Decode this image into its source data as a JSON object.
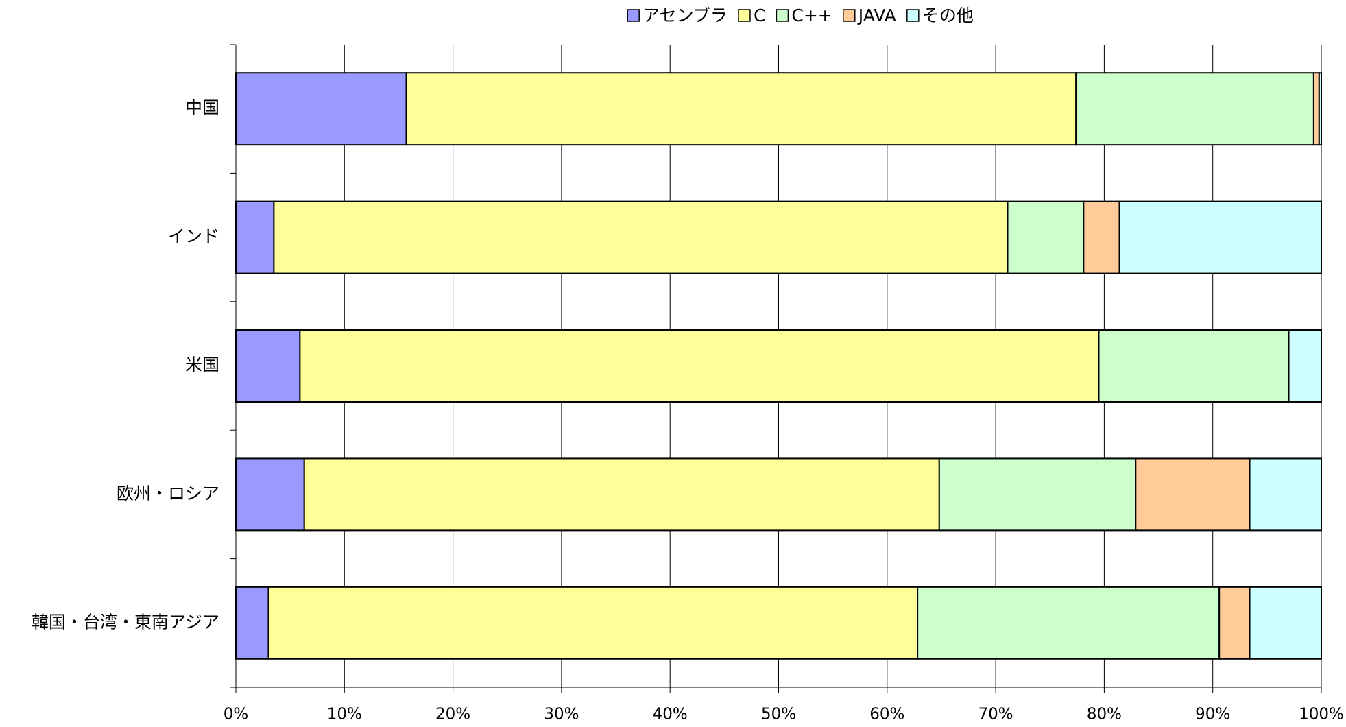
{
  "chart_data": {
    "type": "stacked-bar-horizontal",
    "categories": [
      "中国",
      "インド",
      "米国",
      "欧州・ロシア",
      "韓国・台湾・東南アジア"
    ],
    "series": [
      {
        "name": "アセンブラ",
        "color": "#9999ff",
        "values": [
          15.7,
          3.5,
          5.9,
          6.3,
          3.0
        ]
      },
      {
        "name": "C",
        "color": "#ffff99",
        "values": [
          61.7,
          67.6,
          73.6,
          58.5,
          59.8
        ]
      },
      {
        "name": "C++",
        "color": "#ccffcc",
        "values": [
          21.9,
          7.0,
          17.5,
          18.1,
          27.8
        ]
      },
      {
        "name": "JAVA",
        "color": "#ffcc99",
        "values": [
          0.5,
          3.3,
          0,
          10.5,
          2.8
        ]
      },
      {
        "name": "その他",
        "color": "#ccffff",
        "values": [
          0.2,
          18.6,
          3.0,
          6.6,
          6.6
        ]
      }
    ],
    "xlim": [
      0,
      100
    ],
    "xticks": [
      {
        "value": 0,
        "label": "0%"
      },
      {
        "value": 10,
        "label": "10%"
      },
      {
        "value": 20,
        "label": "20%"
      },
      {
        "value": 30,
        "label": "30%"
      },
      {
        "value": 40,
        "label": "40%"
      },
      {
        "value": 50,
        "label": "50%"
      },
      {
        "value": 60,
        "label": "60%"
      },
      {
        "value": 70,
        "label": "70%"
      },
      {
        "value": 80,
        "label": "80%"
      },
      {
        "value": 90,
        "label": "90%"
      },
      {
        "value": 100,
        "label": "100%"
      }
    ],
    "grid": true,
    "legend": "top"
  }
}
